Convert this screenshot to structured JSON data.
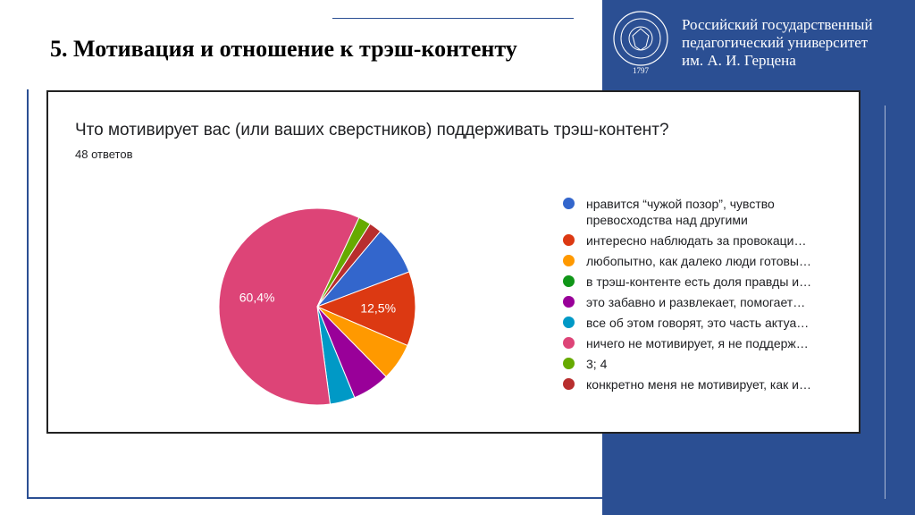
{
  "slide": {
    "title": "5. Мотивация и отношение к трэш-контенту",
    "university": [
      "Российский государственный",
      "педагогический университет",
      "им. А. И. Герцена"
    ],
    "logo_year": "1797"
  },
  "colors": {
    "brand": "#2b4f93"
  },
  "chart_data": {
    "type": "pie",
    "title": "Что мотивирует вас (или ваших сверстников) поддерживать трэш-контент?",
    "subtitle": "48 ответов",
    "legend_position": "right",
    "slices": [
      {
        "label": "нравится “чужой позор”, чувство превосходства над другими",
        "label_lines": [
          "нравится “чужой позор”, чувство",
          "превосходства над другими"
        ],
        "value": 8.3,
        "color": "#3366cc",
        "data_label": ""
      },
      {
        "label": "интересно наблюдать за провокаци…",
        "label_lines": [
          "интересно наблюдать за провокаци…"
        ],
        "value": 12.5,
        "color": "#dc3912",
        "data_label": "12,5%"
      },
      {
        "label": "любопытно, как далеко люди готовы…",
        "label_lines": [
          "любопытно, как далеко люди готовы…"
        ],
        "value": 6.3,
        "color": "#ff9900",
        "data_label": ""
      },
      {
        "label": "в трэш-контенте есть доля правды и…",
        "label_lines": [
          "в трэш-контенте есть доля правды и…"
        ],
        "value": 0,
        "color": "#109618",
        "data_label": ""
      },
      {
        "label": "это забавно и развлекает, помогает…",
        "label_lines": [
          "это забавно и развлекает, помогает…"
        ],
        "value": 6.3,
        "color": "#990099",
        "data_label": ""
      },
      {
        "label": "все об этом говорят, это часть актуа…",
        "label_lines": [
          "все об этом говорят, это часть актуа…"
        ],
        "value": 4.2,
        "color": "#0099c6",
        "data_label": ""
      },
      {
        "label": "ничего не мотивирует, я не поддерж…",
        "label_lines": [
          "ничего не мотивирует, я не поддерж…"
        ],
        "value": 60.4,
        "color": "#dd4477",
        "data_label": "60,4%"
      },
      {
        "label": "3; 4",
        "label_lines": [
          "3; 4"
        ],
        "value": 2.1,
        "color": "#66aa00",
        "data_label": ""
      },
      {
        "label": "конкретно меня не мотивирует, как и…",
        "label_lines": [
          "конкретно меня не мотивирует, как и…"
        ],
        "value": 2.1,
        "color": "#b82e2e",
        "data_label": ""
      }
    ]
  }
}
